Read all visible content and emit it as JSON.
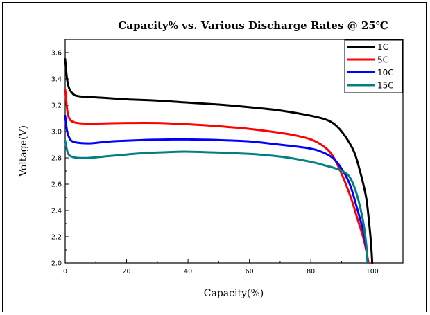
{
  "chart_data": {
    "type": "line",
    "title": "Capacity% vs. Various Discharge Rates @ 25℃",
    "xlabel": "Capacity(%)",
    "ylabel": "Voltage(V)",
    "xlim": [
      0,
      110
    ],
    "ylim": [
      2.0,
      3.7
    ],
    "xticks": [
      "0",
      "20",
      "40",
      "60",
      "80",
      "100"
    ],
    "yticks": [
      "2.0",
      "2.2",
      "2.4",
      "2.6",
      "2.8",
      "3.0",
      "3.2",
      "3.4",
      "3.6"
    ],
    "grid": false,
    "legend_position": "top-right",
    "series": [
      {
        "name": "1C",
        "color": "#000000",
        "points": [
          [
            0,
            3.55
          ],
          [
            0.5,
            3.42
          ],
          [
            1,
            3.35
          ],
          [
            2,
            3.3
          ],
          [
            4,
            3.27
          ],
          [
            10,
            3.26
          ],
          [
            20,
            3.245
          ],
          [
            30,
            3.235
          ],
          [
            40,
            3.22
          ],
          [
            50,
            3.205
          ],
          [
            60,
            3.185
          ],
          [
            70,
            3.16
          ],
          [
            80,
            3.12
          ],
          [
            85,
            3.09
          ],
          [
            88,
            3.05
          ],
          [
            91,
            2.97
          ],
          [
            94,
            2.85
          ],
          [
            96,
            2.7
          ],
          [
            98,
            2.5
          ],
          [
            99,
            2.3
          ],
          [
            99.6,
            2.15
          ],
          [
            100,
            2.0
          ]
        ]
      },
      {
        "name": "5C",
        "color": "#ff0000",
        "points": [
          [
            0,
            3.32
          ],
          [
            0.5,
            3.2
          ],
          [
            1,
            3.12
          ],
          [
            2,
            3.08
          ],
          [
            4,
            3.065
          ],
          [
            8,
            3.06
          ],
          [
            20,
            3.065
          ],
          [
            30,
            3.065
          ],
          [
            40,
            3.055
          ],
          [
            50,
            3.04
          ],
          [
            60,
            3.02
          ],
          [
            70,
            2.99
          ],
          [
            75,
            2.97
          ],
          [
            80,
            2.94
          ],
          [
            84,
            2.89
          ],
          [
            87,
            2.82
          ],
          [
            90,
            2.68
          ],
          [
            93,
            2.5
          ],
          [
            95,
            2.35
          ],
          [
            97,
            2.2
          ],
          [
            98,
            2.1
          ],
          [
            98.8,
            2.0
          ]
        ]
      },
      {
        "name": "10C",
        "color": "#0000ff",
        "points": [
          [
            0,
            3.12
          ],
          [
            0.5,
            3.02
          ],
          [
            1,
            2.97
          ],
          [
            2,
            2.93
          ],
          [
            4,
            2.915
          ],
          [
            8,
            2.91
          ],
          [
            15,
            2.925
          ],
          [
            25,
            2.935
          ],
          [
            35,
            2.94
          ],
          [
            40,
            2.94
          ],
          [
            50,
            2.935
          ],
          [
            60,
            2.925
          ],
          [
            70,
            2.9
          ],
          [
            80,
            2.87
          ],
          [
            85,
            2.83
          ],
          [
            88,
            2.78
          ],
          [
            91,
            2.68
          ],
          [
            93,
            2.58
          ],
          [
            95,
            2.42
          ],
          [
            97,
            2.25
          ],
          [
            98,
            2.12
          ],
          [
            98.5,
            2.0
          ]
        ]
      },
      {
        "name": "15C",
        "color": "#008080",
        "points": [
          [
            0,
            2.93
          ],
          [
            0.5,
            2.87
          ],
          [
            1,
            2.83
          ],
          [
            2,
            2.81
          ],
          [
            4,
            2.8
          ],
          [
            8,
            2.8
          ],
          [
            15,
            2.815
          ],
          [
            25,
            2.835
          ],
          [
            35,
            2.845
          ],
          [
            40,
            2.847
          ],
          [
            50,
            2.84
          ],
          [
            60,
            2.83
          ],
          [
            70,
            2.81
          ],
          [
            80,
            2.77
          ],
          [
            85,
            2.74
          ],
          [
            88,
            2.72
          ],
          [
            91,
            2.69
          ],
          [
            93,
            2.64
          ],
          [
            95,
            2.52
          ],
          [
            97,
            2.32
          ],
          [
            98,
            2.15
          ],
          [
            98.5,
            2.0
          ]
        ]
      }
    ]
  }
}
